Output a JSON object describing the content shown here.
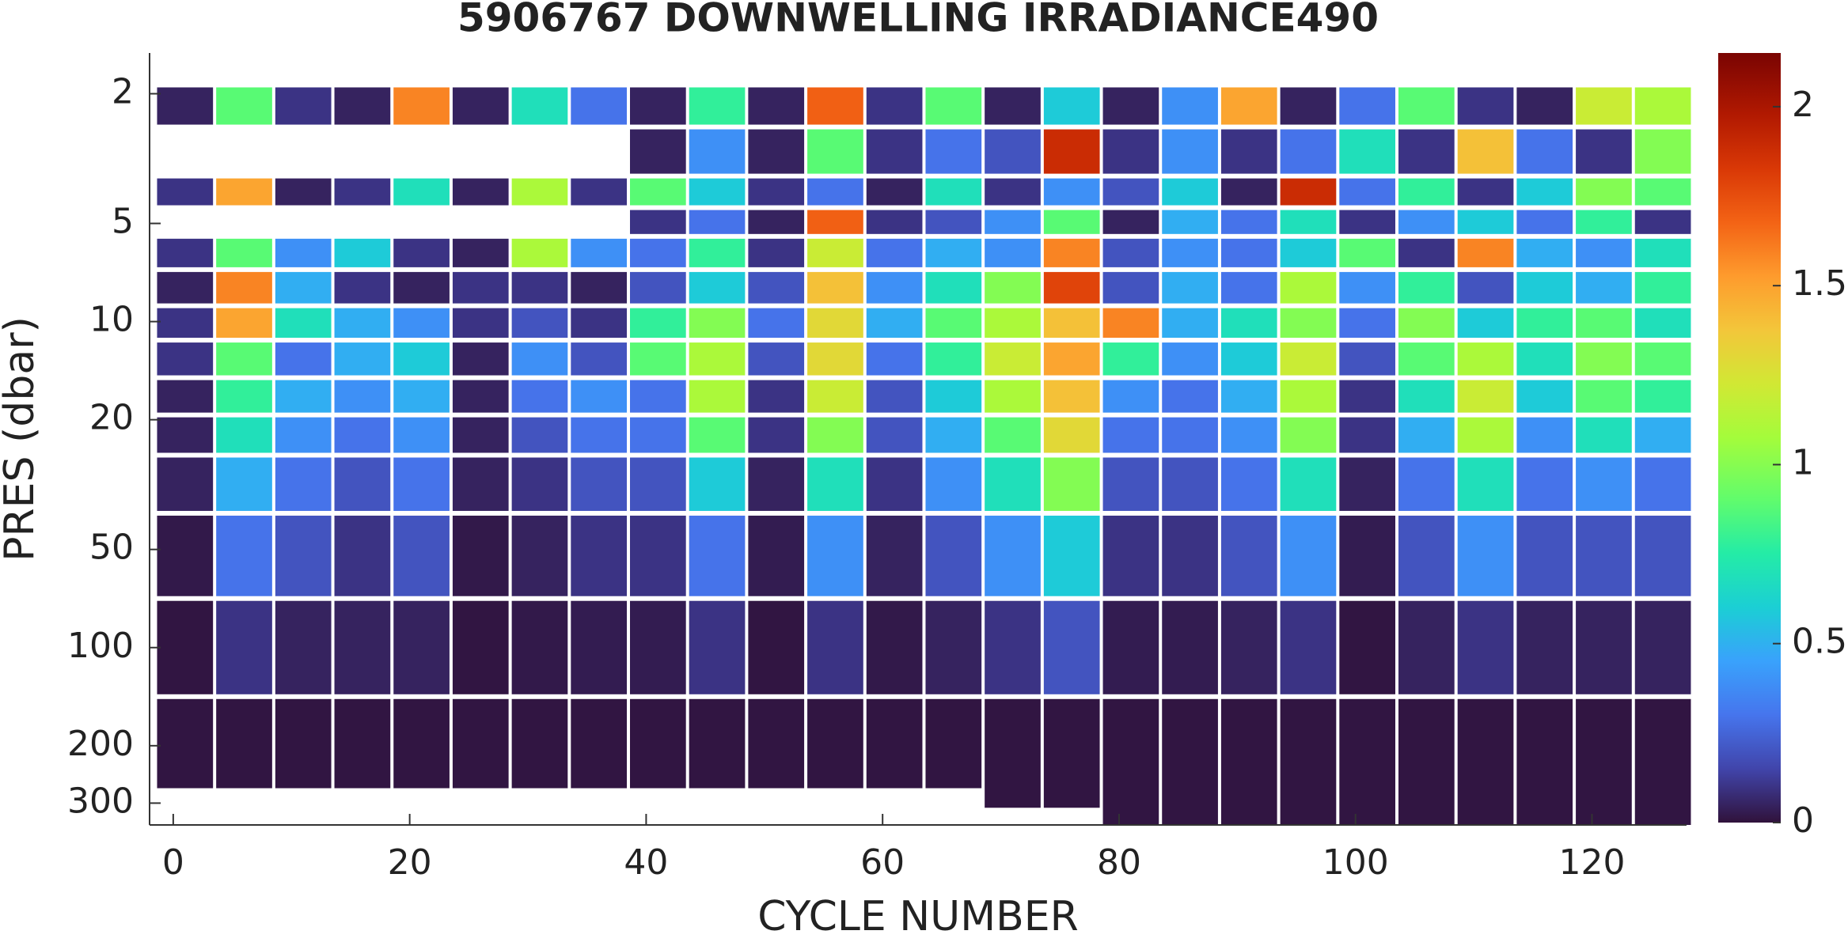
{
  "chart_data": {
    "type": "heatmap",
    "title": "5906767  DOWNWELLING IRRADIANCE490",
    "xlabel": "CYCLE NUMBER",
    "ylabel": "PRES (dbar)",
    "x": [
      1,
      6,
      11,
      16,
      21,
      26,
      31,
      36,
      41,
      46,
      51,
      56,
      61,
      66,
      71,
      76,
      81,
      86,
      91,
      96,
      101,
      106,
      111,
      116,
      121,
      126
    ],
    "pmax": [
      270,
      270,
      270,
      270,
      270,
      270,
      270,
      270,
      270,
      270,
      270,
      270,
      270,
      270,
      310,
      310,
      350,
      350,
      350,
      350,
      350,
      350,
      350,
      350,
      350,
      350
    ],
    "y": [
      2,
      3.2,
      4,
      5,
      6,
      8,
      10,
      13,
      17,
      22,
      30,
      50,
      100,
      200
    ],
    "z": [
      [
        0.05,
        0.9,
        0.1,
        0.05,
        1.6,
        0.05,
        0.7,
        0.3,
        0.05,
        0.8,
        0.05,
        1.7,
        0.1,
        0.9,
        0.05,
        0.6,
        0.05,
        0.4,
        1.5,
        0.05,
        0.3,
        0.9,
        0.1,
        0.05,
        1.2,
        1.1
      ],
      [
        null,
        null,
        null,
        null,
        null,
        null,
        null,
        null,
        0.05,
        0.4,
        0.05,
        0.9,
        0.1,
        0.3,
        0.2,
        1.9,
        0.1,
        0.4,
        0.1,
        0.3,
        0.7,
        0.1,
        1.4,
        0.3,
        0.1,
        1.0
      ],
      [
        0.1,
        1.5,
        0.05,
        0.1,
        0.7,
        0.05,
        1.1,
        0.1,
        0.9,
        0.6,
        0.1,
        0.3,
        0.05,
        0.7,
        0.1,
        0.4,
        0.2,
        0.6,
        0.05,
        1.9,
        0.3,
        0.8,
        0.1,
        0.6,
        1.0,
        0.9
      ],
      [
        null,
        null,
        null,
        null,
        null,
        null,
        null,
        null,
        0.1,
        0.3,
        0.05,
        1.7,
        0.1,
        0.2,
        0.4,
        0.9,
        0.05,
        0.5,
        0.3,
        0.7,
        0.1,
        0.4,
        0.6,
        0.3,
        0.8,
        0.1
      ],
      [
        0.1,
        0.9,
        0.4,
        0.6,
        0.1,
        0.05,
        1.1,
        0.4,
        0.3,
        0.8,
        0.1,
        1.2,
        0.3,
        0.5,
        0.4,
        1.6,
        0.2,
        0.4,
        0.3,
        0.6,
        0.9,
        0.1,
        1.6,
        0.5,
        0.4,
        0.7
      ],
      [
        0.05,
        1.6,
        0.5,
        0.1,
        0.05,
        0.1,
        0.1,
        0.05,
        0.2,
        0.6,
        0.2,
        1.4,
        0.4,
        0.7,
        1.0,
        1.8,
        0.2,
        0.5,
        0.3,
        1.1,
        0.4,
        0.8,
        0.2,
        0.6,
        0.5,
        0.8
      ],
      [
        0.1,
        1.5,
        0.7,
        0.5,
        0.4,
        0.1,
        0.2,
        0.1,
        0.8,
        1.0,
        0.3,
        1.3,
        0.5,
        0.9,
        1.1,
        1.4,
        1.6,
        0.5,
        0.7,
        1.0,
        0.3,
        1.0,
        0.6,
        0.8,
        0.9,
        0.7
      ],
      [
        0.1,
        0.9,
        0.3,
        0.5,
        0.6,
        0.05,
        0.4,
        0.2,
        0.9,
        1.1,
        0.2,
        1.3,
        0.3,
        0.8,
        1.2,
        1.5,
        0.8,
        0.4,
        0.6,
        1.2,
        0.2,
        0.9,
        1.1,
        0.7,
        1.0,
        0.9
      ],
      [
        0.05,
        0.8,
        0.5,
        0.4,
        0.5,
        0.05,
        0.3,
        0.4,
        0.3,
        1.1,
        0.1,
        1.2,
        0.2,
        0.6,
        1.1,
        1.4,
        0.4,
        0.3,
        0.5,
        1.1,
        0.1,
        0.7,
        1.2,
        0.6,
        0.9,
        0.8
      ],
      [
        0.05,
        0.7,
        0.4,
        0.3,
        0.4,
        0.05,
        0.2,
        0.3,
        0.3,
        0.9,
        0.1,
        1.0,
        0.2,
        0.5,
        0.9,
        1.3,
        0.3,
        0.3,
        0.4,
        1.0,
        0.1,
        0.5,
        1.1,
        0.4,
        0.7,
        0.5
      ],
      [
        0.05,
        0.5,
        0.3,
        0.2,
        0.3,
        0.05,
        0.1,
        0.2,
        0.2,
        0.6,
        0.05,
        0.7,
        0.1,
        0.4,
        0.7,
        1.0,
        0.2,
        0.2,
        0.3,
        0.7,
        0.05,
        0.3,
        0.7,
        0.3,
        0.4,
        0.3
      ],
      [
        0.02,
        0.3,
        0.2,
        0.1,
        0.2,
        0.02,
        0.05,
        0.1,
        0.1,
        0.3,
        0.03,
        0.4,
        0.05,
        0.2,
        0.4,
        0.6,
        0.1,
        0.1,
        0.2,
        0.4,
        0.03,
        0.2,
        0.4,
        0.2,
        0.2,
        0.2
      ],
      [
        0.01,
        0.1,
        0.05,
        0.05,
        0.05,
        0.01,
        0.02,
        0.03,
        0.03,
        0.1,
        0.01,
        0.1,
        0.02,
        0.05,
        0.1,
        0.2,
        0.03,
        0.03,
        0.05,
        0.1,
        0.01,
        0.05,
        0.1,
        0.05,
        0.05,
        0.05
      ],
      [
        0.01,
        0.01,
        0.01,
        0.01,
        0.01,
        0.01,
        0.01,
        0.01,
        0.01,
        0.01,
        0.01,
        0.01,
        0.01,
        0.01,
        0.01,
        0.01,
        0.01,
        0.01,
        0.01,
        0.01,
        0.01,
        0.01,
        0.01,
        0.01,
        0.01,
        0.01
      ]
    ],
    "xlim": [
      -2,
      128
    ],
    "xticks": [
      0,
      20,
      40,
      60,
      80,
      100,
      120
    ],
    "ylim": [
      1.5,
      350
    ],
    "yticks": [
      2,
      5,
      10,
      20,
      50,
      100,
      200,
      300
    ],
    "ylog": true,
    "yreverse": true,
    "clim": [
      0,
      2.15
    ],
    "cticks": [
      0,
      0.5,
      1,
      1.5,
      2
    ],
    "colormap": "turbo"
  }
}
